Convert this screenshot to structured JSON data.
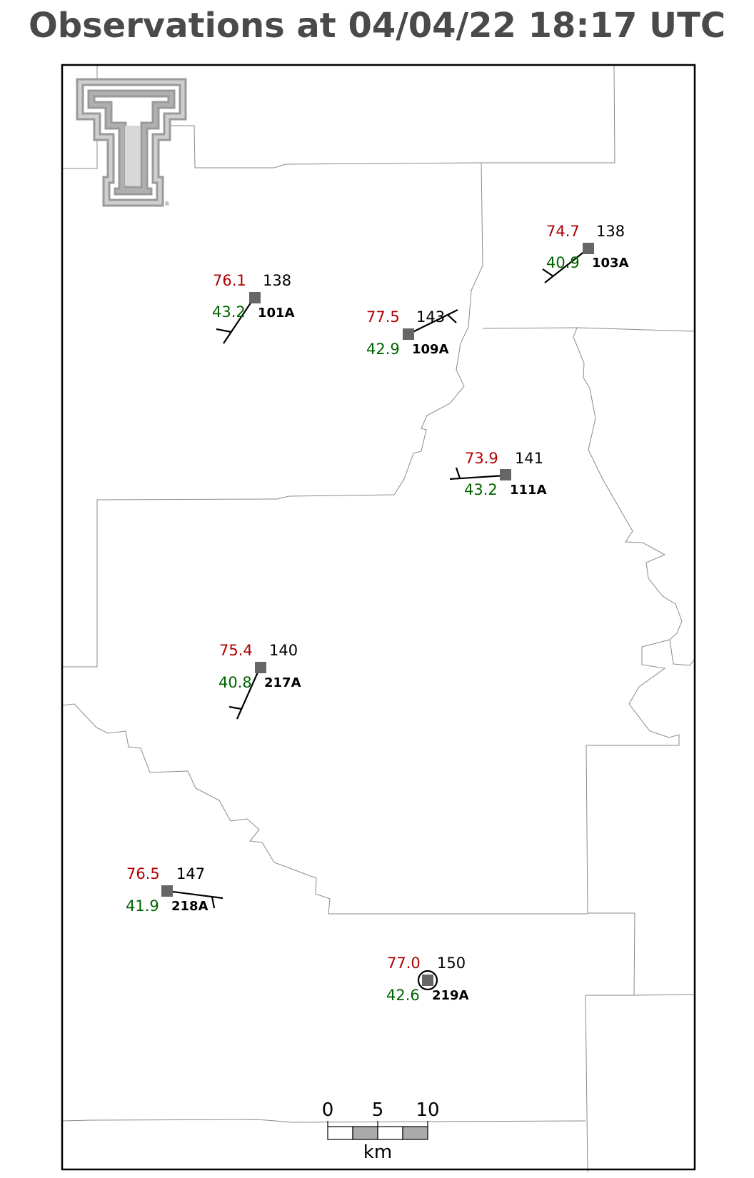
{
  "title": "Observations at 04/04/22 18:17 UTC",
  "logo": {
    "name": "texas-tech-double-t-logo",
    "mark": "®"
  },
  "stations": [
    {
      "id": "101A",
      "temp": "76.1",
      "dewpoint": "43.2",
      "pressure": "138",
      "wind": "barb"
    },
    {
      "id": "103A",
      "temp": "74.7",
      "dewpoint": "40.9",
      "pressure": "138",
      "wind": "barb"
    },
    {
      "id": "109A",
      "temp": "77.5",
      "dewpoint": "42.9",
      "pressure": "143",
      "wind": "barb"
    },
    {
      "id": "111A",
      "temp": "73.9",
      "dewpoint": "43.2",
      "pressure": "141",
      "wind": "barb"
    },
    {
      "id": "217A",
      "temp": "75.4",
      "dewpoint": "40.8",
      "pressure": "140",
      "wind": "barb"
    },
    {
      "id": "218A",
      "temp": "76.5",
      "dewpoint": "41.9",
      "pressure": "147",
      "wind": "barb"
    },
    {
      "id": "219A",
      "temp": "77.0",
      "dewpoint": "42.6",
      "pressure": "150",
      "wind": "calm"
    }
  ],
  "scale_bar": {
    "ticks": [
      "0",
      "5",
      "10"
    ],
    "unit": "km"
  },
  "colors": {
    "temp": "#b00000",
    "dewpoint": "#006400",
    "station": "#666666",
    "county": "#8a8a8a"
  }
}
